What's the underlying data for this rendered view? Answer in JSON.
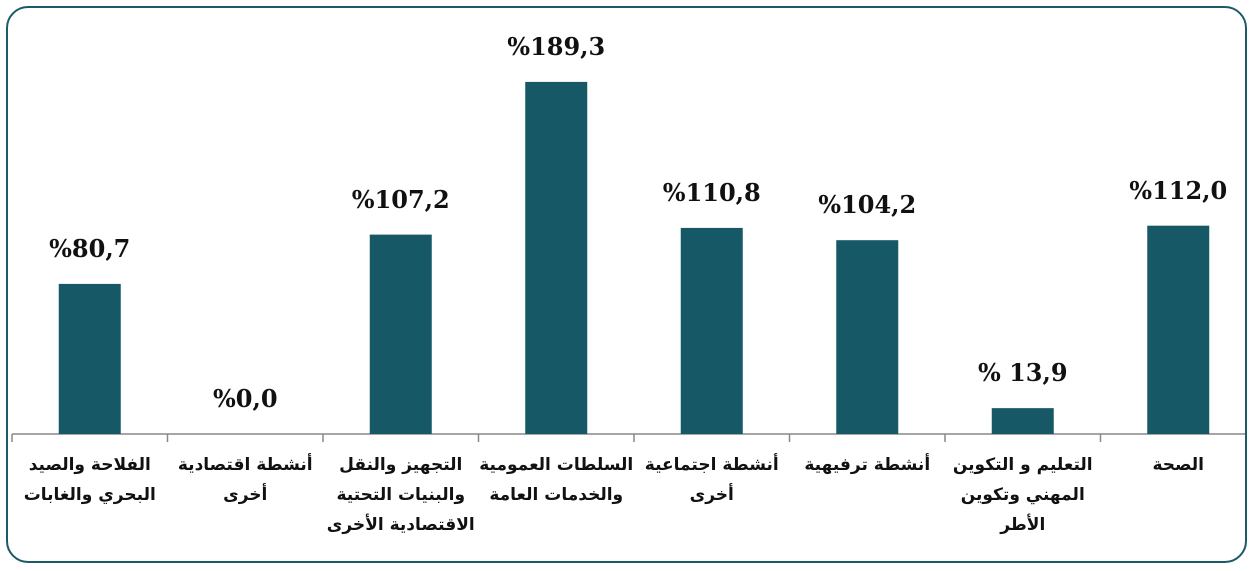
{
  "chart_data": {
    "type": "bar",
    "categories": [
      "الفلاحة والصيد\nالبحري والغابات",
      "أنشطة اقتصادية\nأخرى",
      "التجهيز والنقل\nوالبنيات التحتية\nالاقتصادية الأخرى",
      "السلطات العمومية\nوالخدمات العامة",
      "أنشطة اجتماعية\nأخرى",
      "أنشطة ترفيهية",
      "التعليم و التكوين\nالمهني وتكوين\nالأطر",
      "الصحة"
    ],
    "values": [
      80.7,
      0.0,
      107.2,
      189.3,
      110.8,
      104.2,
      13.9,
      112.0
    ],
    "value_labels": [
      "%80,7",
      "%0,0",
      "%107,2",
      "%189,3",
      "%110,8",
      "%104,2",
      "% 13,9",
      "%112,0"
    ],
    "color": "#175866"
  }
}
